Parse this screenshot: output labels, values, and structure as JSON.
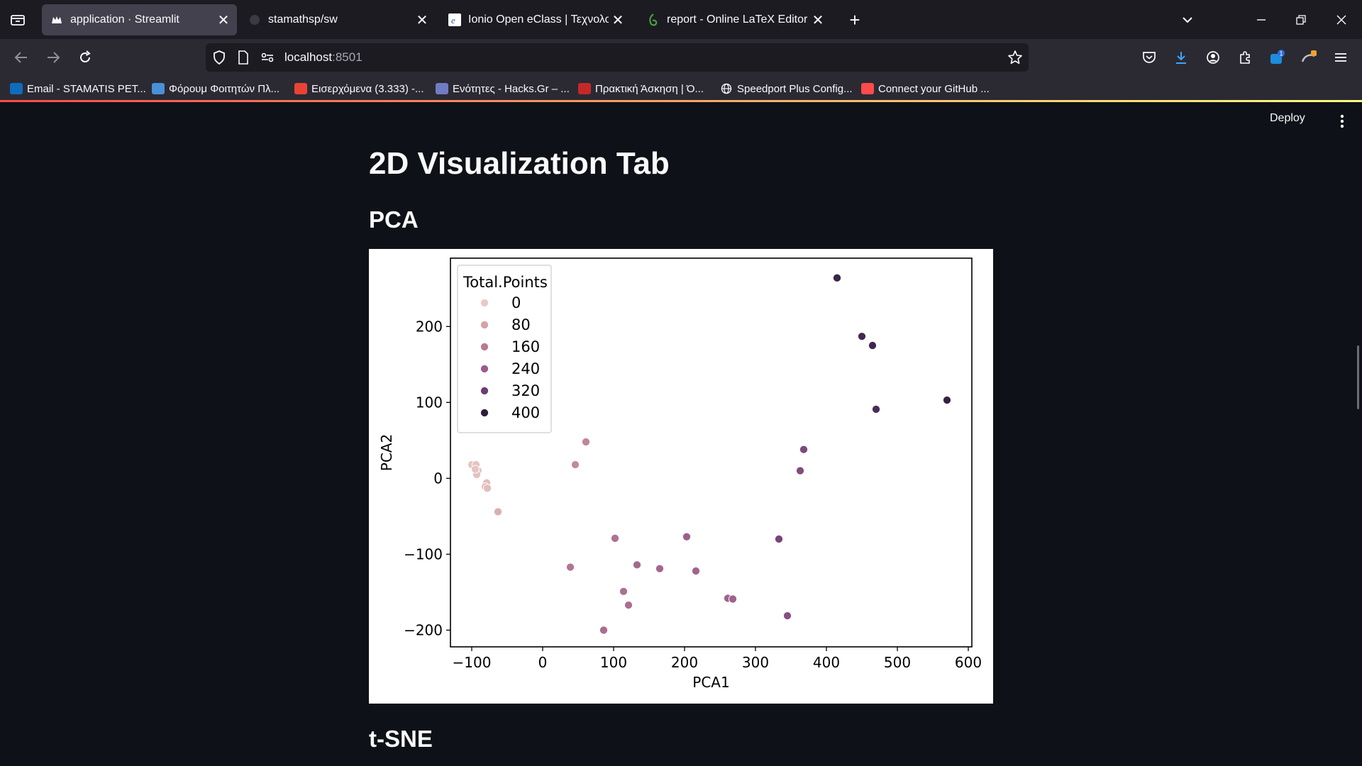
{
  "browser": {
    "tabs": [
      {
        "title": "application · Streamlit",
        "active": true,
        "icon": "streamlit-crown-icon"
      },
      {
        "title": "stamathsp/sw",
        "active": false,
        "icon": "github-icon"
      },
      {
        "title": "Ionio Open eClass | Τεχνολογία",
        "active": false,
        "icon": "eclass-icon"
      },
      {
        "title": "report - Online LaTeX Editor Ov",
        "active": false,
        "icon": "overleaf-icon"
      }
    ],
    "url": {
      "host": "localhost",
      "port": ":8501"
    },
    "bookmarks": [
      {
        "label": "Email - STAMATIS PET...",
        "icon": "outlook-icon",
        "color": "#0f6cbd"
      },
      {
        "label": "Φόρουμ Φοιτητών Πλ...",
        "icon": "forum-icon",
        "color": "#4a90d9"
      },
      {
        "label": "Εισερχόμενα (3.333) -...",
        "icon": "gmail-icon",
        "color": "#ea4335"
      },
      {
        "label": "Ενότητες - Hacks.Gr – ...",
        "icon": "hacks-icon",
        "color": "#6f7cc4"
      },
      {
        "label": "Πρακτική Άσκηση | Ό...",
        "icon": "university-icon",
        "color": "#c62828"
      },
      {
        "label": "Speedport Plus Config...",
        "icon": "globe-icon",
        "color": "#fbfbfe"
      },
      {
        "label": "Connect your GitHub ...",
        "icon": "crown-icon",
        "color": "#ff4b4b"
      }
    ],
    "toolbar_badges": {
      "extensions_count": "1"
    }
  },
  "app": {
    "deploy_label": "Deploy",
    "page_title": "2D Visualization Tab",
    "sections": {
      "pca": "PCA",
      "tsne": "t-SNE"
    }
  },
  "chart_data": {
    "type": "scatter",
    "title": "",
    "xlabel": "PCA1",
    "ylabel": "PCA2",
    "xlim": [
      -130,
      605
    ],
    "ylim": [
      -222,
      290
    ],
    "xticks": [
      -100,
      0,
      100,
      200,
      300,
      400,
      500,
      600
    ],
    "yticks": [
      -200,
      -100,
      0,
      100,
      200
    ],
    "xtick_labels": [
      "−100",
      "0",
      "100",
      "200",
      "300",
      "400",
      "500",
      "600"
    ],
    "ytick_labels": [
      "−200",
      "−100",
      "0",
      "100",
      "200"
    ],
    "grid": false,
    "legend": {
      "title": "Total.Points",
      "placement": "top-left",
      "entries": [
        {
          "label": "0",
          "color": "#e8c9c7"
        },
        {
          "label": "80",
          "color": "#d6a2a6"
        },
        {
          "label": "160",
          "color": "#b77a93"
        },
        {
          "label": "240",
          "color": "#9a5c8c"
        },
        {
          "label": "320",
          "color": "#6b3e73"
        },
        {
          "label": "400",
          "color": "#2d1e3e"
        }
      ]
    },
    "hue_range": [
      0,
      440
    ],
    "points": [
      {
        "x": -100,
        "y": 18,
        "hue": 10
      },
      {
        "x": -94,
        "y": 18,
        "hue": 15
      },
      {
        "x": -91,
        "y": 10,
        "hue": 12
      },
      {
        "x": -93,
        "y": 5,
        "hue": 20
      },
      {
        "x": -95,
        "y": 12,
        "hue": 8
      },
      {
        "x": -79,
        "y": -6,
        "hue": 30
      },
      {
        "x": -81,
        "y": -11,
        "hue": 25
      },
      {
        "x": -78,
        "y": -13,
        "hue": 28
      },
      {
        "x": -63,
        "y": -44,
        "hue": 60
      },
      {
        "x": 46,
        "y": 18,
        "hue": 140
      },
      {
        "x": 61,
        "y": 48,
        "hue": 150
      },
      {
        "x": 39,
        "y": -117,
        "hue": 190
      },
      {
        "x": 102,
        "y": -79,
        "hue": 200
      },
      {
        "x": 114,
        "y": -149,
        "hue": 205
      },
      {
        "x": 121,
        "y": -167,
        "hue": 210
      },
      {
        "x": 86,
        "y": -200,
        "hue": 215
      },
      {
        "x": 133,
        "y": -114,
        "hue": 230
      },
      {
        "x": 165,
        "y": -119,
        "hue": 235
      },
      {
        "x": 216,
        "y": -122,
        "hue": 240
      },
      {
        "x": 203,
        "y": -77,
        "hue": 255
      },
      {
        "x": 261,
        "y": -158,
        "hue": 245
      },
      {
        "x": 268,
        "y": -159,
        "hue": 250
      },
      {
        "x": 333,
        "y": -80,
        "hue": 330
      },
      {
        "x": 345,
        "y": -181,
        "hue": 300
      },
      {
        "x": 363,
        "y": 10,
        "hue": 310
      },
      {
        "x": 368,
        "y": 38,
        "hue": 320
      },
      {
        "x": 415,
        "y": 264,
        "hue": 420
      },
      {
        "x": 450,
        "y": 187,
        "hue": 410
      },
      {
        "x": 465,
        "y": 175,
        "hue": 415
      },
      {
        "x": 470,
        "y": 91,
        "hue": 400
      },
      {
        "x": 570,
        "y": 103,
        "hue": 430
      }
    ]
  }
}
